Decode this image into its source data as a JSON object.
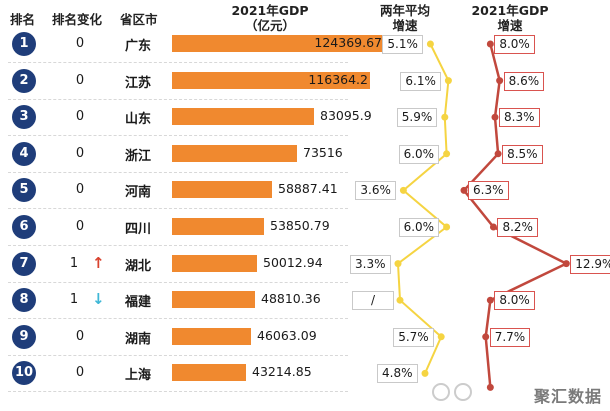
{
  "headers": {
    "rank": "排名",
    "change": "排名变化",
    "province": "省区市",
    "gdp_line1": "2021年GDP",
    "gdp_line2": "（亿元）",
    "avg_line1": "两年平均",
    "avg_line2": "增速",
    "growth_line1": "2021年GDP",
    "growth_line2": "增速"
  },
  "watermark": "聚汇数据",
  "colors": {
    "rank_circle": "#1f3d7a",
    "bar": "#f0892f",
    "avg_line": "#f5d442",
    "growth_line": "#c1483d",
    "arrow_up": "#d9432f",
    "arrow_down": "#3fb7d6"
  },
  "chart_data": {
    "type": "table",
    "rows": [
      {
        "rank": "1",
        "change": "0",
        "arrow": "",
        "province": "广东",
        "gdp": 124369.67,
        "gdp_label": "124369.67",
        "avg": "5.1%",
        "growth": "8.0%",
        "avg_val": 5.1,
        "growth_val": 8.0
      },
      {
        "rank": "2",
        "change": "0",
        "arrow": "",
        "province": "江苏",
        "gdp": 116364.2,
        "gdp_label": "116364.2",
        "avg": "6.1%",
        "growth": "8.6%",
        "avg_val": 6.1,
        "growth_val": 8.6
      },
      {
        "rank": "3",
        "change": "0",
        "arrow": "",
        "province": "山东",
        "gdp": 83095.9,
        "gdp_label": "83095.9",
        "avg": "5.9%",
        "growth": "8.3%",
        "avg_val": 5.9,
        "growth_val": 8.3
      },
      {
        "rank": "4",
        "change": "0",
        "arrow": "",
        "province": "浙江",
        "gdp": 73516,
        "gdp_label": "73516",
        "avg": "6.0%",
        "growth": "8.5%",
        "avg_val": 6.0,
        "growth_val": 8.5
      },
      {
        "rank": "5",
        "change": "0",
        "arrow": "",
        "province": "河南",
        "gdp": 58887.41,
        "gdp_label": "58887.41",
        "avg": "3.6%",
        "growth": "6.3%",
        "avg_val": 3.6,
        "growth_val": 6.3
      },
      {
        "rank": "6",
        "change": "0",
        "arrow": "",
        "province": "四川",
        "gdp": 53850.79,
        "gdp_label": "53850.79",
        "avg": "6.0%",
        "growth": "8.2%",
        "avg_val": 6.0,
        "growth_val": 8.2
      },
      {
        "rank": "7",
        "change": "1",
        "arrow": "up",
        "province": "湖北",
        "gdp": 50012.94,
        "gdp_label": "50012.94",
        "avg": "3.3%",
        "growth": "12.9%",
        "avg_val": 3.3,
        "growth_val": 12.9
      },
      {
        "rank": "8",
        "change": "1",
        "arrow": "down",
        "province": "福建",
        "gdp": 48810.36,
        "gdp_label": "48810.36",
        "avg": "/",
        "growth": "8.0%",
        "avg_val": null,
        "growth_val": 8.0
      },
      {
        "rank": "9",
        "change": "0",
        "arrow": "",
        "province": "湖南",
        "gdp": 46063.09,
        "gdp_label": "46063.09",
        "avg": "5.7%",
        "growth": "7.7%",
        "avg_val": 5.7,
        "growth_val": 7.7
      },
      {
        "rank": "10",
        "change": "0",
        "arrow": "",
        "province": "上海",
        "gdp": 43214.85,
        "gdp_label": "43214.85",
        "avg": "4.8%",
        "growth": "",
        "avg_val": 4.8,
        "growth_val": null
      }
    ]
  }
}
